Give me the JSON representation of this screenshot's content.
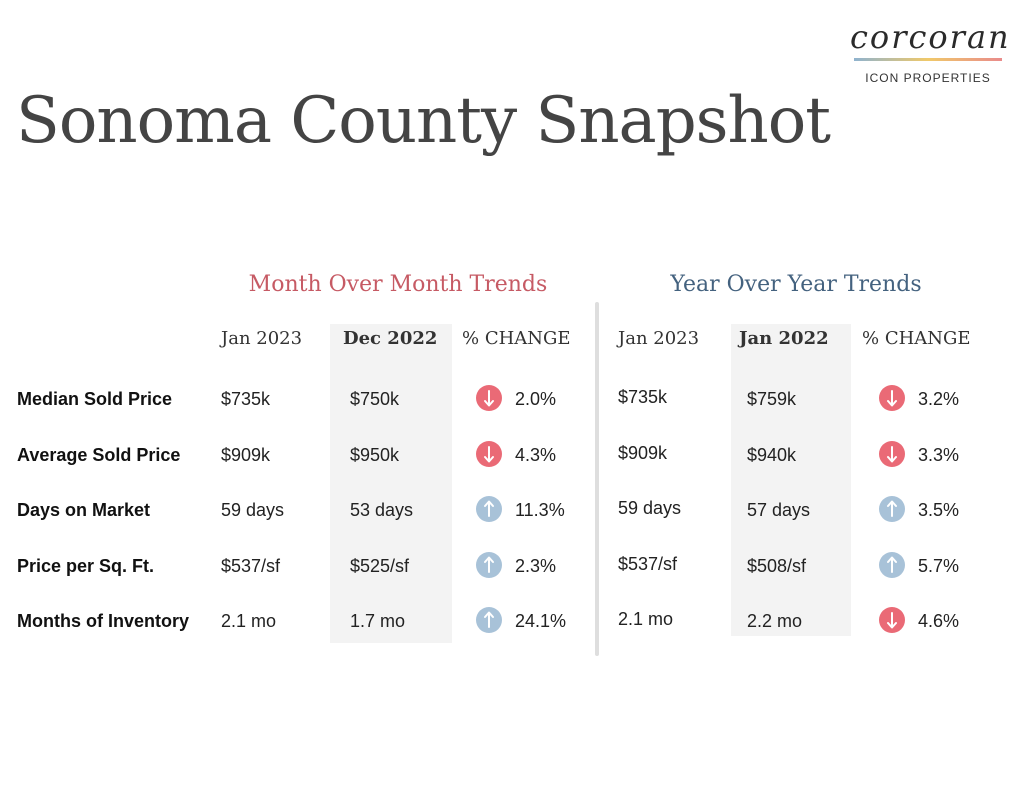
{
  "brand": {
    "name": "corcoran",
    "sub": "ICON PROPERTIES"
  },
  "title": "Sonoma County Snapshot",
  "mom": {
    "heading": "Month Over Month Trends",
    "col1": "Jan 2023",
    "col2": "Dec 2022",
    "col3": "% CHANGE"
  },
  "yoy": {
    "heading": "Year Over Year Trends",
    "col1": "Jan 2023",
    "col2": "Jan 2022",
    "col3": "% CHANGE"
  },
  "colors": {
    "down": "#ea6a76",
    "up": "#a8c2d8",
    "mom_heading": "#c65a64",
    "yoy_heading": "#44627f"
  },
  "rows": [
    {
      "label": "Median Sold Price",
      "mom": {
        "cur": "$735k",
        "prev": "$750k",
        "dir": "down",
        "icon": "arrow-down-icon",
        "pct": "2.0%"
      },
      "yoy": {
        "cur": "$735k",
        "prev": "$759k",
        "dir": "down",
        "icon": "arrow-down-icon",
        "pct": "3.2%"
      }
    },
    {
      "label": "Average Sold Price",
      "mom": {
        "cur": "$909k",
        "prev": "$950k",
        "dir": "down",
        "icon": "arrow-down-icon",
        "pct": "4.3%"
      },
      "yoy": {
        "cur": "$909k",
        "prev": "$940k",
        "dir": "down",
        "icon": "arrow-down-icon",
        "pct": "3.3%"
      }
    },
    {
      "label": "Days on Market",
      "mom": {
        "cur": "59 days",
        "prev": "53 days",
        "dir": "up",
        "icon": "arrow-up-icon",
        "pct": "11.3%"
      },
      "yoy": {
        "cur": "59 days",
        "prev": "57 days",
        "dir": "up",
        "icon": "arrow-up-icon",
        "pct": "3.5%"
      }
    },
    {
      "label": "Price per Sq. Ft.",
      "mom": {
        "cur": "$537/sf",
        "prev": "$525/sf",
        "dir": "up",
        "icon": "arrow-up-icon",
        "pct": "2.3%"
      },
      "yoy": {
        "cur": "$537/sf",
        "prev": "$508/sf",
        "dir": "up",
        "icon": "arrow-up-icon",
        "pct": "5.7%"
      }
    },
    {
      "label": "Months of Inventory",
      "mom": {
        "cur": "2.1 mo",
        "prev": "1.7 mo",
        "dir": "up",
        "icon": "arrow-up-icon",
        "pct": "24.1%"
      },
      "yoy": {
        "cur": "2.1 mo",
        "prev": "2.2 mo",
        "dir": "down",
        "icon": "arrow-down-icon",
        "pct": "4.6%"
      }
    }
  ]
}
